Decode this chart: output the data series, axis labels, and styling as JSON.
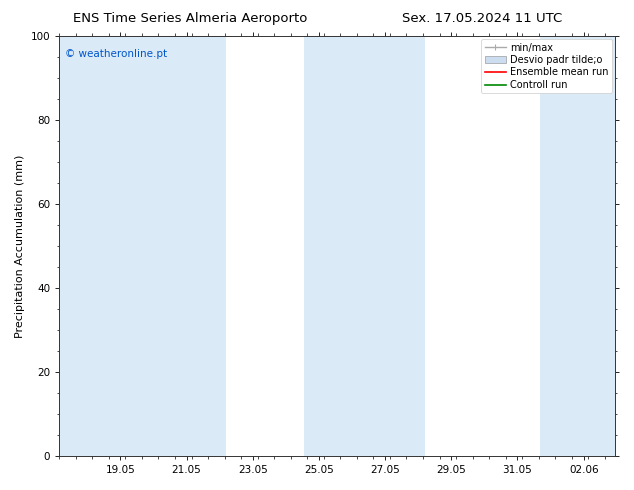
{
  "title_left": "ENS Time Series Almeria Aeroporto",
  "title_right": "Sex. 17.05.2024 11 UTC",
  "ylabel": "Precipitation Accumulation (mm)",
  "watermark": "© weatheronline.pt",
  "ylim": [
    0,
    100
  ],
  "yticks": [
    0,
    20,
    40,
    60,
    80,
    100
  ],
  "x_min": 17.2,
  "x_max": 34.0,
  "xtick_positions": [
    19.05,
    21.05,
    23.05,
    25.05,
    27.05,
    29.05,
    31.05,
    33.06
  ],
  "xtick_labels": [
    "19.05",
    "21.05",
    "23.05",
    "25.05",
    "27.05",
    "29.05",
    "31.05",
    "02.06"
  ],
  "shaded": [
    [
      17.2,
      20.35
    ],
    [
      19.75,
      22.25
    ],
    [
      24.6,
      26.25
    ],
    [
      25.75,
      28.25
    ],
    [
      31.75,
      34.0
    ]
  ],
  "shaded_color": "#daeaf6",
  "legend_labels": [
    "min/max",
    "Desvio padr tilde;o",
    "Ensemble mean run",
    "Controll run"
  ],
  "legend_colors": [
    "#aaaaaa",
    "#ccddf0",
    "#ff0000",
    "#008800"
  ],
  "bg_color": "#ffffff",
  "title_fontsize": 9.5,
  "tick_fontsize": 7.5,
  "ylabel_fontsize": 8,
  "watermark_fontsize": 7.5,
  "legend_fontsize": 7
}
